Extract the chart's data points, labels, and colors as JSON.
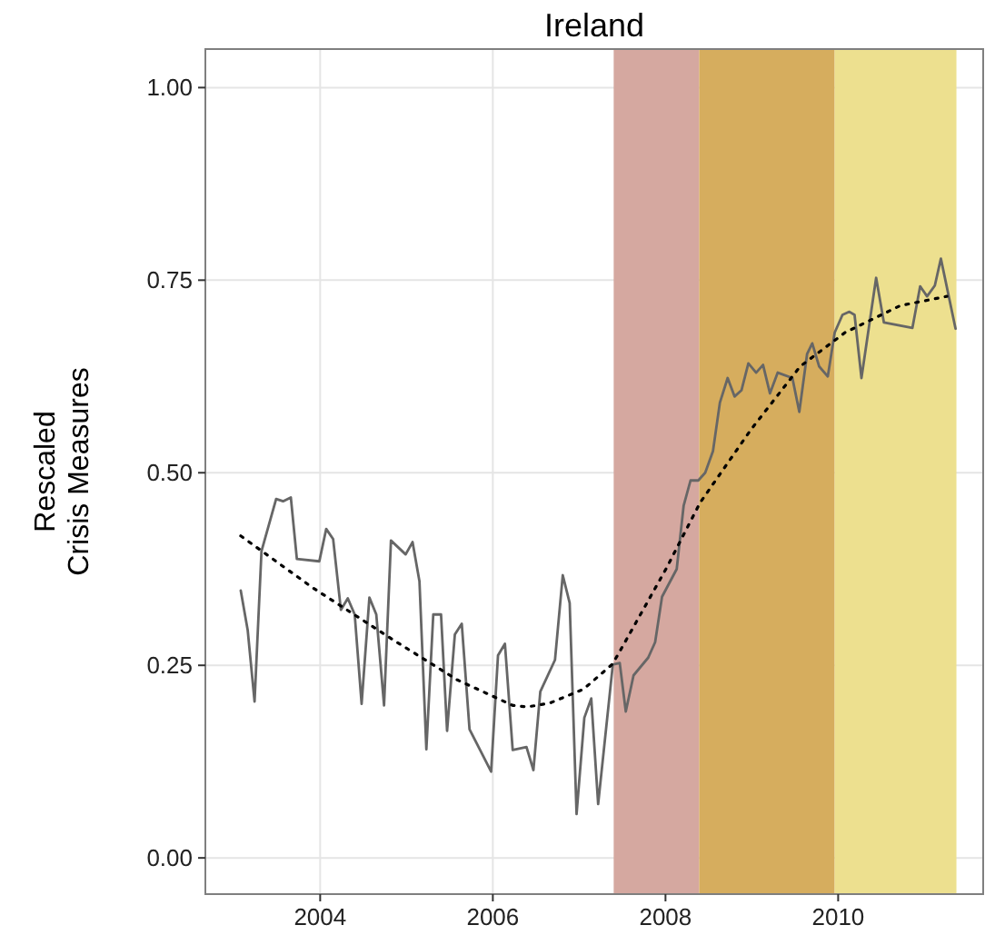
{
  "chart_data": {
    "type": "line",
    "title": "Ireland",
    "ylabel": "Rescaled\nCrisis Measures",
    "xlim": [
      2002.67,
      2011.68
    ],
    "xticks": [
      2004,
      2006,
      2008,
      2010
    ],
    "ylim": [
      -0.047,
      1.05
    ],
    "yticks": [
      {
        "value": 0,
        "label": "0.00"
      },
      {
        "value": 0.25,
        "label": "0.25"
      },
      {
        "value": 0.5,
        "label": "0.50"
      },
      {
        "value": 0.75,
        "label": "0.75"
      },
      {
        "value": 1,
        "label": "1.00"
      }
    ],
    "grid": true,
    "bands": [
      {
        "axis": "x",
        "from": 2007.4,
        "to": 2008.39,
        "color": "#d5a8a0"
      },
      {
        "axis": "x",
        "from": 2008.39,
        "to": 2009.96,
        "color": "#d6ad5e"
      },
      {
        "axis": "x",
        "from": 2009.96,
        "to": 2011.37,
        "color": "#ede08f"
      }
    ],
    "series": [
      {
        "color": "#666666",
        "line_style": "solid",
        "x": [
          2003.08,
          2003.16,
          2003.24,
          2003.32,
          2003.49,
          2003.57,
          2003.66,
          2003.73,
          2003.99,
          2004.07,
          2004.15,
          2004.24,
          2004.32,
          2004.4,
          2004.48,
          2004.57,
          2004.65,
          2004.74,
          2004.82,
          2004.99,
          2005.07,
          2005.15,
          2005.23,
          2005.31,
          2005.4,
          2005.47,
          2005.56,
          2005.64,
          2005.73,
          2005.98,
          2006.06,
          2006.14,
          2006.23,
          2006.39,
          2006.47,
          2006.55,
          2006.72,
          2006.81,
          2006.89,
          2006.97,
          2007.06,
          2007.14,
          2007.22,
          2007.39,
          2007.47,
          2007.54,
          2007.63,
          2007.8,
          2007.88,
          2007.96,
          2008.13,
          2008.21,
          2008.29,
          2008.38,
          2008.46,
          2008.55,
          2008.63,
          2008.72,
          2008.8,
          2008.88,
          2008.96,
          2009.05,
          2009.13,
          2009.21,
          2009.3,
          2009.47,
          2009.55,
          2009.64,
          2009.7,
          2009.78,
          2009.88,
          2009.96,
          2010.05,
          2010.13,
          2010.19,
          2010.27,
          2010.44,
          2010.53,
          2010.86,
          2010.95,
          2011.03,
          2011.12,
          2011.19,
          2011.36
        ],
        "values": [
          0.347,
          0.296,
          0.203,
          0.398,
          0.466,
          0.463,
          0.468,
          0.388,
          0.385,
          0.427,
          0.414,
          0.322,
          0.337,
          0.316,
          0.2,
          0.338,
          0.316,
          0.198,
          0.412,
          0.394,
          0.41,
          0.359,
          0.141,
          0.316,
          0.316,
          0.165,
          0.29,
          0.304,
          0.167,
          0.112,
          0.263,
          0.278,
          0.14,
          0.144,
          0.114,
          0.216,
          0.257,
          0.367,
          0.331,
          0.057,
          0.182,
          0.207,
          0.07,
          0.251,
          0.253,
          0.19,
          0.237,
          0.26,
          0.28,
          0.339,
          0.375,
          0.457,
          0.49,
          0.49,
          0.5,
          0.528,
          0.591,
          0.623,
          0.599,
          0.607,
          0.642,
          0.63,
          0.64,
          0.603,
          0.63,
          0.623,
          0.579,
          0.654,
          0.668,
          0.638,
          0.625,
          0.682,
          0.705,
          0.709,
          0.705,
          0.623,
          0.753,
          0.695,
          0.688,
          0.742,
          0.729,
          0.743,
          0.778,
          0.687
        ]
      },
      {
        "type": "line",
        "color": "#000000",
        "line_style": "dotted",
        "x": [
          2003.08,
          2003.91,
          2004.86,
          2005.59,
          2006.23,
          2006.4,
          2006.66,
          2007.05,
          2007.38,
          2007.45,
          2008.01,
          2008.4,
          2008.99,
          2009.56,
          2010.08,
          2010.72,
          2011.26
        ],
        "values": [
          0.418,
          0.351,
          0.282,
          0.231,
          0.198,
          0.196,
          0.201,
          0.219,
          0.251,
          0.264,
          0.376,
          0.461,
          0.556,
          0.638,
          0.682,
          0.717,
          0.729
        ]
      }
    ]
  }
}
